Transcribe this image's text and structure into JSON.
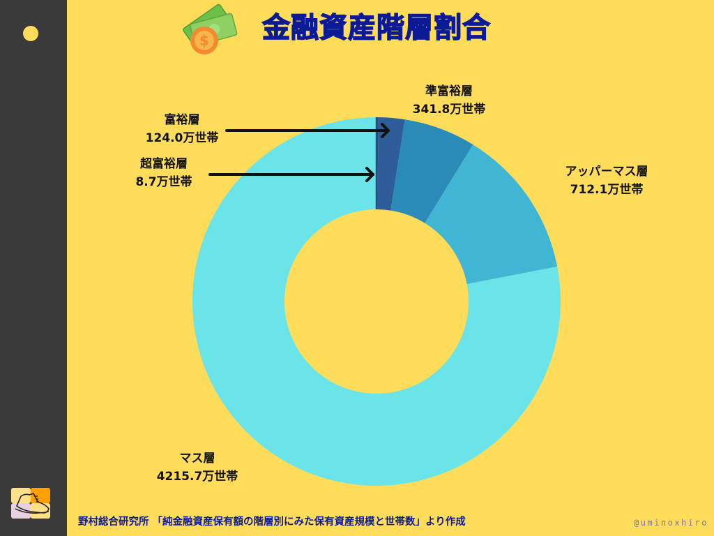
{
  "title": "金融資産階層割合",
  "source": "野村総合研究所 「純金融資産保有額の階層別にみた保有資産規模と世帯数」より作成",
  "credit": "@uminoxhiro",
  "icons": {
    "header": "money-coin-icon",
    "sidebar_dot": "dot-icon",
    "logo": "shoe-logo-icon"
  },
  "colors": {
    "background": "#FFDD5A",
    "sidebar": "#3A3A3A",
    "title": "#0B1A96",
    "ultra_wealthy": "#2B4C80",
    "wealthy": "#2E5E99",
    "semi_wealthy": "#2A8AB8",
    "upper_mass": "#40B6D4",
    "mass": "#6AE4E8"
  },
  "labels": {
    "ultra_wealthy": {
      "name": "超富裕層",
      "value": "8.7万世帯"
    },
    "wealthy": {
      "name": "富裕層",
      "value": "124.0万世帯"
    },
    "semi_wealthy": {
      "name": "準富裕層",
      "value": "341.8万世帯"
    },
    "upper_mass": {
      "name": "アッパーマス層",
      "value": "712.1万世帯"
    },
    "mass": {
      "name": "マス層",
      "value": "4215.7万世帯"
    }
  },
  "chart_data": {
    "type": "pie",
    "subtype": "donut",
    "title": "金融資産階層割合",
    "unit": "万世帯",
    "categories": [
      "超富裕層",
      "富裕層",
      "準富裕層",
      "アッパーマス層",
      "マス層"
    ],
    "values": [
      8.7,
      124.0,
      341.8,
      712.1,
      4215.7
    ],
    "colors": [
      "#2B4C80",
      "#2E5E99",
      "#2A8AB8",
      "#40B6D4",
      "#6AE4E8"
    ],
    "start_angle": "12 o'clock, clockwise",
    "legend": "none (direct labels with arrows for small slices)",
    "source": "野村総合研究所 「純金融資産保有額の階層別にみた保有資産規模と世帯数」より作成"
  }
}
